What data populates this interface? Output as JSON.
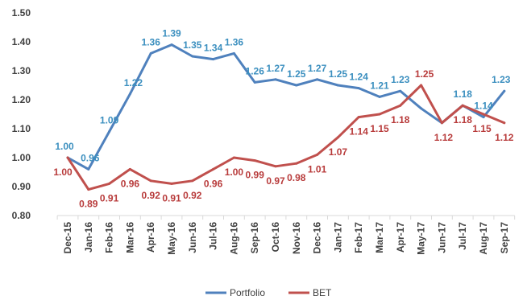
{
  "chart_data": {
    "type": "line",
    "categories": [
      "Dec-15",
      "Jan-16",
      "Feb-16",
      "Mar-16",
      "Apr-16",
      "May-16",
      "Jun-16",
      "Jul-16",
      "Aug-16",
      "Sep-16",
      "Oct-16",
      "Nov-16",
      "Dec-16",
      "Jan-17",
      "Feb-17",
      "Mar-17",
      "Apr-17",
      "May-17",
      "Jun-17",
      "Jul-17",
      "Aug-17",
      "Sep-17"
    ],
    "ylim": [
      0.8,
      1.5
    ],
    "yticks": [
      "0.80",
      "0.90",
      "1.00",
      "1.10",
      "1.20",
      "1.30",
      "1.40",
      "1.50"
    ],
    "series": [
      {
        "name": "Portfolio",
        "color": "#4f81bd",
        "label_color": "#3b8fbf",
        "values": [
          1.0,
          0.96,
          1.09,
          1.22,
          1.36,
          1.39,
          1.35,
          1.34,
          1.36,
          1.26,
          1.27,
          1.25,
          1.27,
          1.25,
          1.24,
          1.21,
          1.23,
          1.17,
          1.12,
          1.18,
          1.14,
          1.23
        ],
        "labels": [
          "1.00",
          "0.96",
          "1.09",
          "1.22",
          "1.36",
          "1.39",
          "1.35",
          "1.34",
          "1.36",
          "1.26",
          "1.27",
          "1.25",
          "1.27",
          "1.25",
          "1.24",
          "1.21",
          "1.23",
          "",
          "",
          "1.18",
          "1.14",
          "1.23"
        ]
      },
      {
        "name": "BET",
        "color": "#c0504d",
        "label_color": "#b83b3b",
        "values": [
          1.0,
          0.89,
          0.91,
          0.96,
          0.92,
          0.91,
          0.92,
          0.96,
          1.0,
          0.99,
          0.97,
          0.98,
          1.01,
          1.07,
          1.14,
          1.15,
          1.18,
          1.25,
          1.12,
          1.18,
          1.15,
          1.12
        ],
        "labels": [
          "1.00",
          "0.89",
          "0.91",
          "0.96",
          "0.92",
          "0.91",
          "0.92",
          "0.96",
          "1.00",
          "0.99",
          "0.97",
          "0.98",
          "1.01",
          "1.07",
          "1.14",
          "1.15",
          "1.18",
          "1.25",
          "1.12",
          "1.18",
          "1.15",
          "1.12"
        ]
      }
    ],
    "grid": false,
    "legend": "bottom-center"
  }
}
